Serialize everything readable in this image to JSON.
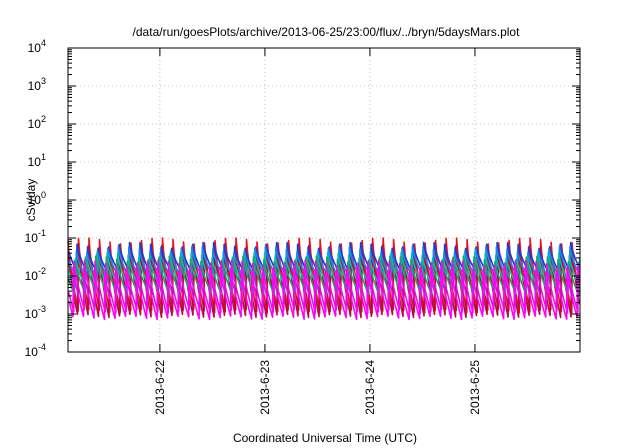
{
  "chart_data": {
    "type": "line",
    "title": "/data/run/goesPlots/archive/2013-06-25/23:00/flux/../bryn/5daysMars.plot",
    "xlabel": "Coordinated Universal Time (UTC)",
    "ylabel": "cSv/day",
    "y_scale": "log",
    "ylim": [
      0.0001,
      10000
    ],
    "y_ticks": [
      {
        "base": "10",
        "exp": "-4"
      },
      {
        "base": "10",
        "exp": "-3"
      },
      {
        "base": "10",
        "exp": "-2"
      },
      {
        "base": "10",
        "exp": "-1"
      },
      {
        "base": "10",
        "exp": "0"
      },
      {
        "base": "10",
        "exp": "1"
      },
      {
        "base": "10",
        "exp": "2"
      },
      {
        "base": "10",
        "exp": "3"
      },
      {
        "base": "10",
        "exp": "4"
      }
    ],
    "xlim": [
      "2013-06-21T03:00",
      "2013-06-26T00:00"
    ],
    "x_ticks": [
      "2013-6-22",
      "2013-6-23",
      "2013-6-24",
      "2013-6-25"
    ],
    "x_tick_values": [
      "2013-06-22T00:00",
      "2013-06-23T00:00",
      "2013-06-24T00:00",
      "2013-06-25T00:00"
    ],
    "grid": true,
    "legend": "none",
    "sawtooth_period_hours": 2.4,
    "series": [
      {
        "color": "#e8121f",
        "peak": 0.085,
        "trough": 0.0012
      },
      {
        "color": "#b0103a",
        "peak": 0.06,
        "trough": 0.0009
      },
      {
        "color": "#1a3ed8",
        "peak": 0.065,
        "trough": 0.012
      },
      {
        "color": "#1e88e5",
        "peak": 0.05,
        "trough": 0.009
      },
      {
        "color": "#10b8b0",
        "peak": 0.035,
        "trough": 0.0055
      },
      {
        "color": "#20a070",
        "peak": 0.028,
        "trough": 0.0035
      },
      {
        "color": "#d020d0",
        "peak": 0.022,
        "trough": 0.0012
      },
      {
        "color": "#ff00ff",
        "peak": 0.015,
        "trough": 0.0008
      }
    ]
  }
}
